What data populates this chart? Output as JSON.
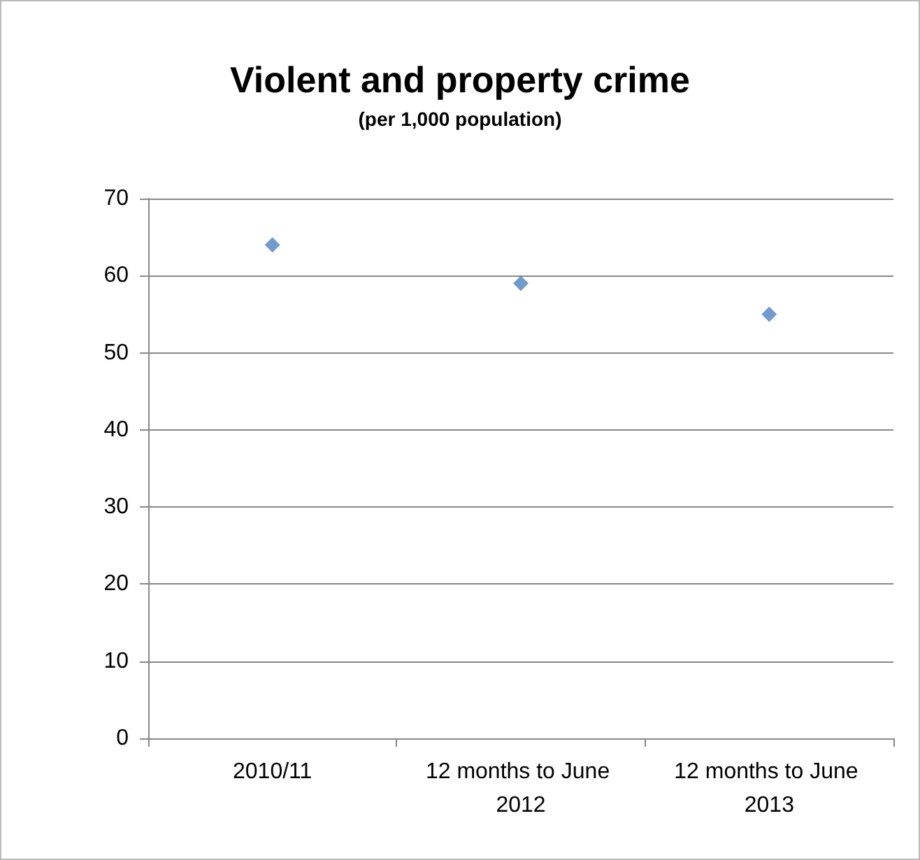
{
  "chart_data": {
    "type": "scatter",
    "title": "Violent and property crime",
    "subtitle": "(per 1,000 population)",
    "categories": [
      "2010/11",
      "12 months to June 2012",
      "12 months to June 2013"
    ],
    "values": [
      64,
      59,
      55
    ],
    "color": "#4f81bd",
    "marker": "diamond",
    "ylim": [
      0,
      70
    ],
    "yticks": [
      0,
      10,
      20,
      30,
      40,
      50,
      60,
      70
    ],
    "grid": "y"
  }
}
